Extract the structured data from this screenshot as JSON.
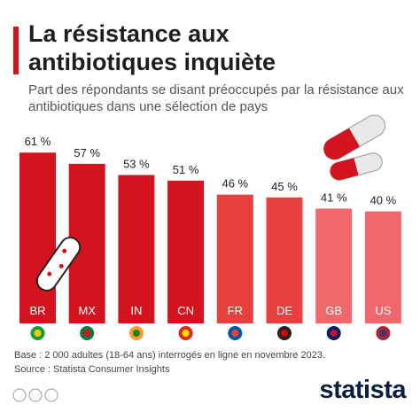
{
  "chart_data": {
    "type": "bar",
    "title": "La résistance aux antibiotiques inquiète",
    "subtitle": "Part des répondants se disant préoccupés par la résistance aux antibiotiques dans une sélection de pays",
    "categories": [
      "BR",
      "MX",
      "IN",
      "CN",
      "FR",
      "DE",
      "GB",
      "US"
    ],
    "values": [
      61,
      57,
      53,
      51,
      46,
      45,
      41,
      40
    ],
    "value_labels": [
      "61 %",
      "57 %",
      "53 %",
      "51 %",
      "46 %",
      "45 %",
      "41 %",
      "40 %"
    ],
    "colors": [
      "#d3131d",
      "#d3131d",
      "#d3131d",
      "#d3131d",
      "#e8403e",
      "#e8403e",
      "#f0686c",
      "#f0686c"
    ],
    "notes": [
      "Base : 2 000 adultes (18-64 ans) interrogés en ligne en novembre 2023.",
      "Source : Statista Consumer Insights"
    ],
    "brand": "statista"
  }
}
